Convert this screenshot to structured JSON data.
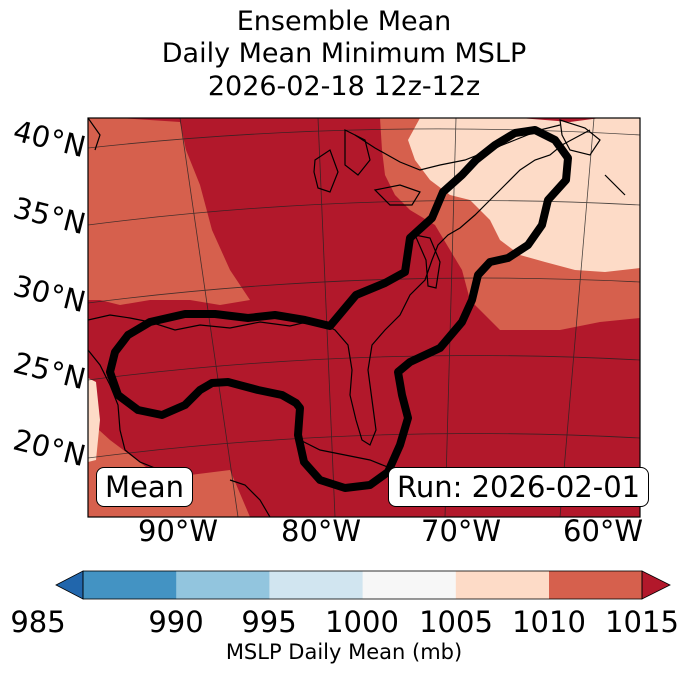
{
  "title": {
    "line1": "Ensemble Mean",
    "line2": "Daily Mean Minimum MSLP",
    "line3": "2026-02-18 12z-12z"
  },
  "map": {
    "lat_labels": [
      "40°N",
      "35°N",
      "30°N",
      "25°N",
      "20°N"
    ],
    "lon_labels": [
      "90°W",
      "80°W",
      "70°W",
      "60°W"
    ],
    "left_box_label": "Mean",
    "right_box_label": "Run: 2026-02-01",
    "fill_colors": {
      "lt_1005": "#f7f7f7",
      "r1005_1010": "#fddbc7",
      "r1010_1015": "#d6604d",
      "gt_1015": "#b2182b"
    }
  },
  "colorbar": {
    "ticks": [
      "985",
      "990",
      "995",
      "1000",
      "1005",
      "1010",
      "1015"
    ],
    "colors": [
      "#2166ac",
      "#4393c3",
      "#92c5de",
      "#d1e5f0",
      "#f7f7f7",
      "#fddbc7",
      "#d6604d",
      "#b2182b"
    ],
    "label": "MSLP Daily Mean (mb)"
  }
}
